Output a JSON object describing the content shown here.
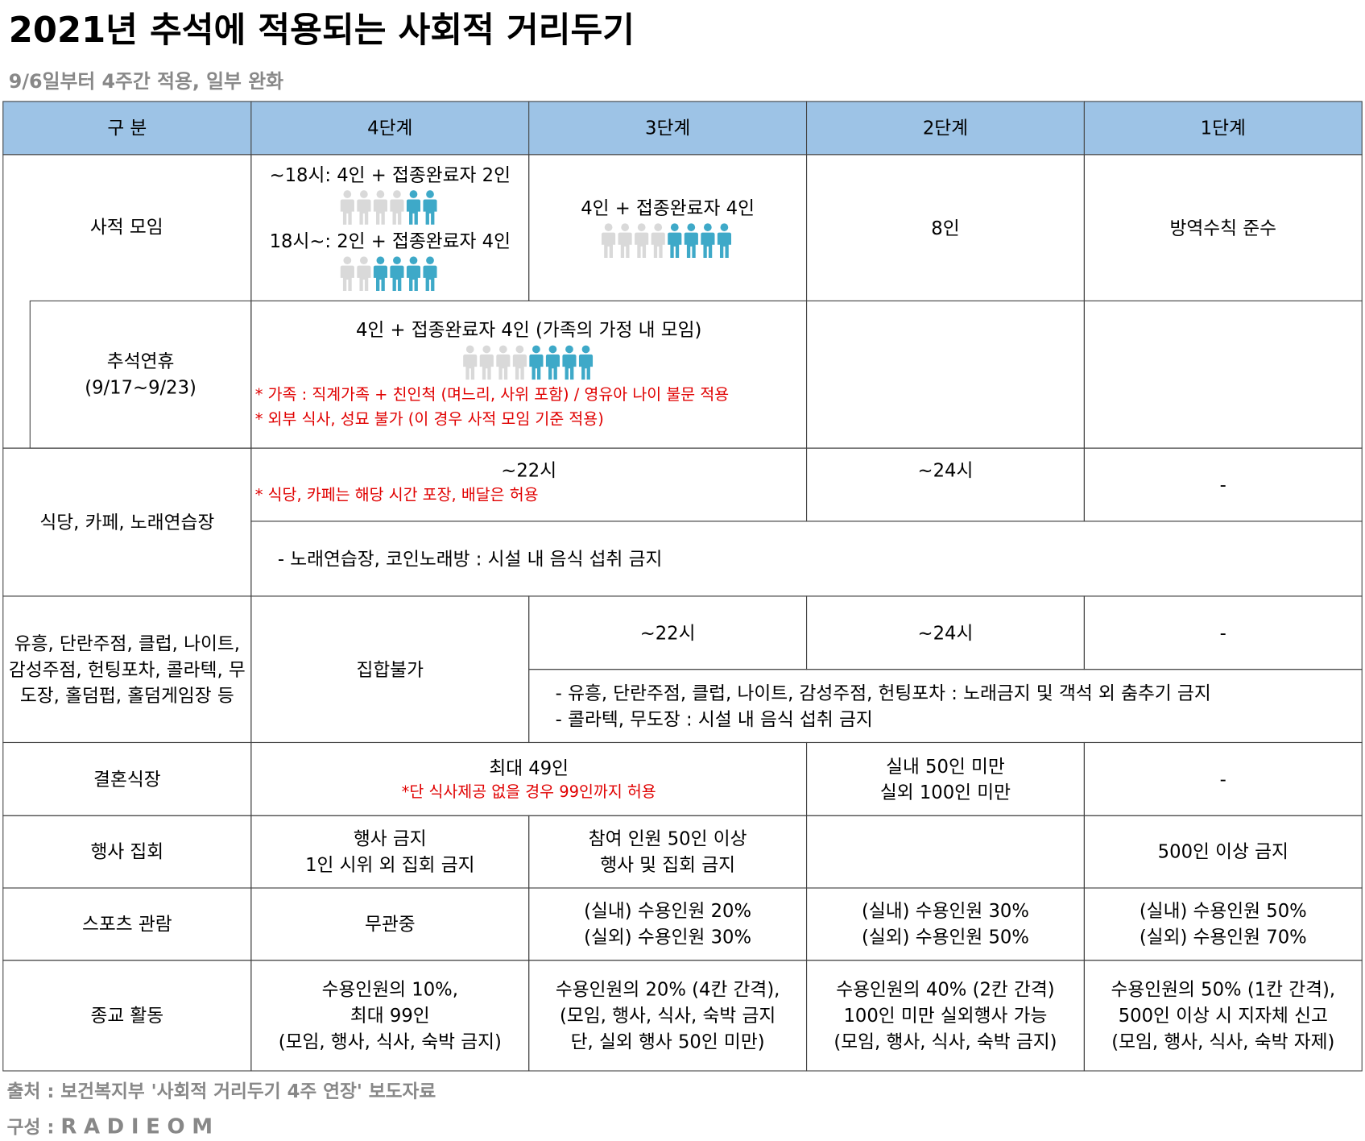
{
  "header": {
    "title": "2021년 추석에 적용되는 사회적 거리두기",
    "subtitle": "9/6일부터 4주간 적용, 일부 완화"
  },
  "table": {
    "columns": [
      "구 분",
      "4단계",
      "3단계",
      "2단계",
      "1단계"
    ],
    "rows": [
      {
        "label": "사적 모임",
        "stage4": [
          "~18시: 4인 + 접종완료자 2인",
          "18시~: 2인 + 접종완료자 4인"
        ],
        "stage3": "4인 + 접종완료자 4인",
        "stage2": "8인",
        "stage1": "방역수칙 준수"
      },
      {
        "label": [
          "추석연휴",
          "(9/17~9/23)"
        ],
        "stage4_3": "4인 + 접종완료자 4인 (가족의 가정 내 모임)",
        "notes": [
          "* 가족 : 직계가족 + 친인척 (며느리, 사위 포함) / 영유아 나이 불문 적용",
          "* 외부 식사, 성묘 불가 (이 경우 사적 모임 기준 적용)"
        ]
      },
      {
        "label": "식당, 카페, 노래연습장",
        "stage4_3": "~22시",
        "note": "* 식당, 카페는 해당 시간 포장, 배달은 허용",
        "stage2": "~24시",
        "stage1": "-",
        "extra": "- 노래연습장, 코인노래방 : 시설 내 음식 섭취 금지"
      },
      {
        "label": "유흥, 단란주점, 클럽, 나이트, 감성주점, 헌팅포차, 콜라텍, 무도장, 홀덤펍, 홀덤게임장 등",
        "stage4": "집합불가",
        "stage3": "~22시",
        "stage2": "~24시",
        "stage1": "-",
        "extra": [
          "- 유흥, 단란주점, 클럽, 나이트, 감성주점, 헌팅포차 : 노래금지 및 객석 외 춤추기 금지",
          "- 콜라텍, 무도장 : 시설 내 음식 섭취 금지"
        ]
      },
      {
        "label": "결혼식장",
        "stage4_3": "최대 49인",
        "note": "*단 식사제공 없을 경우 99인까지 허용",
        "stage2": [
          "실내 50인 미만",
          "실외 100인 미만"
        ],
        "stage1": "-"
      },
      {
        "label": "행사 집회",
        "stage4": [
          "행사 금지",
          "1인 시위 외 집회 금지"
        ],
        "stage3": [
          "참여 인원 50인 이상",
          "행사 및 집회 금지"
        ],
        "stage1": "500인 이상 금지"
      },
      {
        "label": "스포츠 관람",
        "stage4": "무관중",
        "stage3": [
          "(실내) 수용인원 20%",
          "(실외) 수용인원 30%"
        ],
        "stage2": [
          "(실내) 수용인원 30%",
          "(실외) 수용인원 50%"
        ],
        "stage1": [
          "(실내) 수용인원 50%",
          "(실외) 수용인원 70%"
        ]
      },
      {
        "label": "종교 활동",
        "stage4": [
          "수용인원의 10%,",
          "최대 99인",
          "(모임, 행사, 식사, 숙박 금지)"
        ],
        "stage3": [
          "수용인원의 20% (4칸 간격),",
          "(모임, 행사, 식사, 숙박 금지",
          "단, 실외 행사 50인 미만)"
        ],
        "stage2": [
          "수용인원의 40% (2칸 간격)",
          "100인 미만 실외행사 가능",
          "(모임, 행사, 식사, 숙박 금지)"
        ],
        "stage1": [
          "수용인원의 50% (1칸 간격),",
          "500인 이상 시 지자체 신고",
          "(모임, 행사, 식사, 숙박 자제)"
        ]
      }
    ]
  },
  "footer": {
    "source": "출처 : 보건복지부 '사회적 거리두기 4주 연장' 보도자료",
    "credit_label": "구성 :",
    "credit": "RADIEOM"
  }
}
